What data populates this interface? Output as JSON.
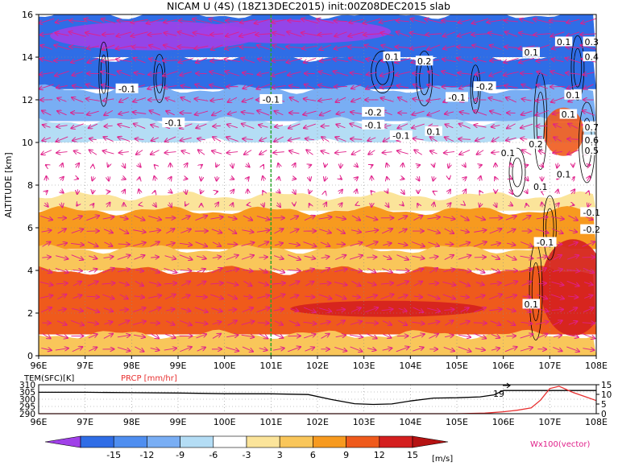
{
  "title": "NICAM U (4S) (18Z13DEC2015) init:00Z08DEC2015 slab",
  "chart_data": [
    {
      "type": "heatmap",
      "subtype": "longitude-altitude cross section (filled contours + line contours + wind vectors)",
      "variable": "U (zonal wind, filled), W x100 (vectors), line contours",
      "ylabel": "ALTITUDE [km]",
      "x_range": [
        96,
        108
      ],
      "y_range": [
        0,
        16
      ],
      "xticks": [
        "96E",
        "97E",
        "98E",
        "99E",
        "100E",
        "101E",
        "102E",
        "103E",
        "104E",
        "105E",
        "106E",
        "107E",
        "108E"
      ],
      "yticks": [
        "0",
        "2",
        "4",
        "6",
        "8",
        "10",
        "12",
        "14",
        "16"
      ],
      "marker_line_lon": 101,
      "colorbar": {
        "labels": [
          "-15",
          "-12",
          "-9",
          "-6",
          "-3",
          "3",
          "6",
          "9",
          "12",
          "15"
        ],
        "unit": "[m/s]",
        "colors": [
          "#a040e8",
          "#2f6de6",
          "#4f8ef0",
          "#79aef4",
          "#b4ddf5",
          "#ffffff",
          "#fbe49a",
          "#f9c65a",
          "#f79a1f",
          "#ef5a1c",
          "#d41f1f",
          "#b51212"
        ]
      },
      "vector_legend": "Wx100(vector)",
      "bands": [
        {
          "alt_from": 14.0,
          "alt_to": 16.0,
          "u": -15
        },
        {
          "alt_from": 12.5,
          "alt_to": 14.0,
          "u": -13
        },
        {
          "alt_from": 11.0,
          "alt_to": 12.5,
          "u": -9
        },
        {
          "alt_from": 10.0,
          "alt_to": 11.0,
          "u": -6
        },
        {
          "alt_from": 9.0,
          "alt_to": 10.0,
          "u": -3
        },
        {
          "alt_from": 7.5,
          "alt_to": 9.0,
          "u": 0
        },
        {
          "alt_from": 6.8,
          "alt_to": 7.5,
          "u": 4
        },
        {
          "alt_from": 5.0,
          "alt_to": 6.8,
          "u": 9
        },
        {
          "alt_from": 4.0,
          "alt_to": 5.0,
          "u": 7
        },
        {
          "alt_from": 1.0,
          "alt_to": 4.0,
          "u": 12
        },
        {
          "alt_from": 0.0,
          "alt_to": 1.0,
          "u": 8
        }
      ],
      "contour_labels": [
        {
          "text": "-0.1",
          "lon": 97.9,
          "alt": 12.5
        },
        {
          "text": "-0.1",
          "lon": 98.9,
          "alt": 10.9
        },
        {
          "text": "-0.1",
          "lon": 101.0,
          "alt": 12.0
        },
        {
          "text": "0.1",
          "lon": 103.6,
          "alt": 14.0
        },
        {
          "text": "0.2",
          "lon": 104.3,
          "alt": 13.8
        },
        {
          "text": "-0.1",
          "lon": 105.0,
          "alt": 12.1
        },
        {
          "text": "-0.2",
          "lon": 105.6,
          "alt": 12.6
        },
        {
          "text": "-0.2",
          "lon": 103.2,
          "alt": 11.4
        },
        {
          "text": "-0.1",
          "lon": 103.2,
          "alt": 10.8
        },
        {
          "text": "-0.1",
          "lon": 103.8,
          "alt": 10.3
        },
        {
          "text": "0.1",
          "lon": 104.5,
          "alt": 10.5
        },
        {
          "text": "0.1",
          "lon": 107.3,
          "alt": 14.7
        },
        {
          "text": "0.1",
          "lon": 106.6,
          "alt": 14.2
        },
        {
          "text": "0.3",
          "lon": 107.9,
          "alt": 14.7
        },
        {
          "text": "0.4",
          "lon": 107.9,
          "alt": 14.0
        },
        {
          "text": "0.1",
          "lon": 107.5,
          "alt": 12.2
        },
        {
          "text": "0.1",
          "lon": 107.4,
          "alt": 11.3
        },
        {
          "text": "0.7",
          "lon": 107.9,
          "alt": 10.7
        },
        {
          "text": "0.6",
          "lon": 107.9,
          "alt": 10.1
        },
        {
          "text": "0.5",
          "lon": 107.9,
          "alt": 9.6
        },
        {
          "text": "0.1",
          "lon": 106.1,
          "alt": 9.5
        },
        {
          "text": "0.2",
          "lon": 106.7,
          "alt": 9.9
        },
        {
          "text": "0.1",
          "lon": 107.3,
          "alt": 8.5
        },
        {
          "text": "0.1",
          "lon": 106.8,
          "alt": 7.9
        },
        {
          "text": "-0.1",
          "lon": 107.9,
          "alt": 6.7
        },
        {
          "text": "-0.2",
          "lon": 107.9,
          "alt": 5.9
        },
        {
          "text": "-0.1",
          "lon": 106.9,
          "alt": 5.3
        },
        {
          "text": "0.1",
          "lon": 106.6,
          "alt": 2.4
        }
      ]
    },
    {
      "type": "line",
      "left_axis_label": "TEM(SFC)[K]",
      "right_axis_label": "PRCP [mm/hr]",
      "left_ticks": [
        "290",
        "295",
        "300",
        "305",
        "310"
      ],
      "right_ticks": [
        "0",
        "5",
        "10",
        "15"
      ],
      "left_range": [
        290,
        310
      ],
      "right_range": [
        0,
        15
      ],
      "xticks": [
        "96E",
        "97E",
        "98E",
        "99E",
        "100E",
        "101E",
        "102E",
        "103E",
        "104E",
        "105E",
        "106E",
        "107E",
        "108E"
      ],
      "series": [
        {
          "name": "TEM(SFC)[K]",
          "color": "#000000",
          "axis": "left",
          "x": [
            96,
            97,
            98,
            99,
            100,
            101,
            101.8,
            102.3,
            102.8,
            103.2,
            103.6,
            104.0,
            104.5,
            105.0,
            105.5,
            105.8,
            106.0,
            107.0,
            108.0
          ],
          "y": [
            304.8,
            304.8,
            304.5,
            304.3,
            303.8,
            303.7,
            303.2,
            299.8,
            296.9,
            296.4,
            296.7,
            298.8,
            300.8,
            301.0,
            301.6,
            303.0,
            306.0,
            306.0,
            306.0
          ]
        },
        {
          "name": "PRCP [mm/hr]",
          "color": "#e83030",
          "axis": "right",
          "x": [
            96,
            105.0,
            105.6,
            106.0,
            106.3,
            106.6,
            106.8,
            107.0,
            107.2,
            107.5,
            107.8,
            108.0
          ],
          "y": [
            0,
            0,
            0.3,
            1.0,
            1.8,
            3.0,
            7.0,
            13.0,
            14.2,
            11.0,
            8.5,
            6.8
          ]
        }
      ],
      "annotation": "19"
    }
  ]
}
